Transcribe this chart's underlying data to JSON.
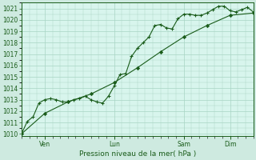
{
  "title": "",
  "xlabel": "Pression niveau de la mer( hPa )",
  "ylabel": "",
  "background_color": "#ceeae0",
  "plot_bg_color": "#d8f5ed",
  "grid_color": "#a8d4c4",
  "line_color": "#1a5c1a",
  "ylim": [
    1009.8,
    1021.5
  ],
  "yticks": [
    1010,
    1011,
    1012,
    1013,
    1014,
    1015,
    1016,
    1017,
    1018,
    1019,
    1020,
    1021
  ],
  "total_hours": 240,
  "xtick_major_positions": [
    24,
    96,
    168,
    216
  ],
  "xtick_major_labels": [
    "Ven",
    "Lun",
    "Sam",
    "Dim"
  ],
  "minor_xtick_interval": 8,
  "line1_x": [
    0,
    6,
    12,
    18,
    24,
    30,
    36,
    42,
    48,
    54,
    60,
    66,
    72,
    78,
    84,
    90,
    96,
    102,
    108,
    114,
    120,
    126,
    132,
    138,
    144,
    150,
    156,
    162,
    168,
    174,
    180,
    186,
    192,
    198,
    204,
    210,
    216,
    222,
    228,
    234,
    240
  ],
  "line1_y": [
    1010.0,
    1011.1,
    1011.5,
    1012.7,
    1013.0,
    1013.1,
    1013.0,
    1012.8,
    1012.8,
    1013.0,
    1013.1,
    1013.3,
    1013.0,
    1012.8,
    1012.7,
    1013.3,
    1014.2,
    1015.2,
    1015.3,
    1016.8,
    1017.5,
    1018.0,
    1018.5,
    1019.5,
    1019.6,
    1019.3,
    1019.2,
    1020.1,
    1020.5,
    1020.5,
    1020.4,
    1020.4,
    1020.6,
    1020.9,
    1021.2,
    1021.2,
    1020.8,
    1020.7,
    1020.9,
    1021.1,
    1020.7
  ],
  "line2_x": [
    0,
    24,
    48,
    72,
    96,
    120,
    144,
    168,
    192,
    216,
    240
  ],
  "line2_y": [
    1010.0,
    1011.8,
    1012.8,
    1013.5,
    1014.5,
    1015.8,
    1017.2,
    1018.5,
    1019.5,
    1020.4,
    1020.6
  ],
  "font_color": "#1a5c1a",
  "tick_fontsize": 5.5,
  "xlabel_fontsize": 6.5
}
